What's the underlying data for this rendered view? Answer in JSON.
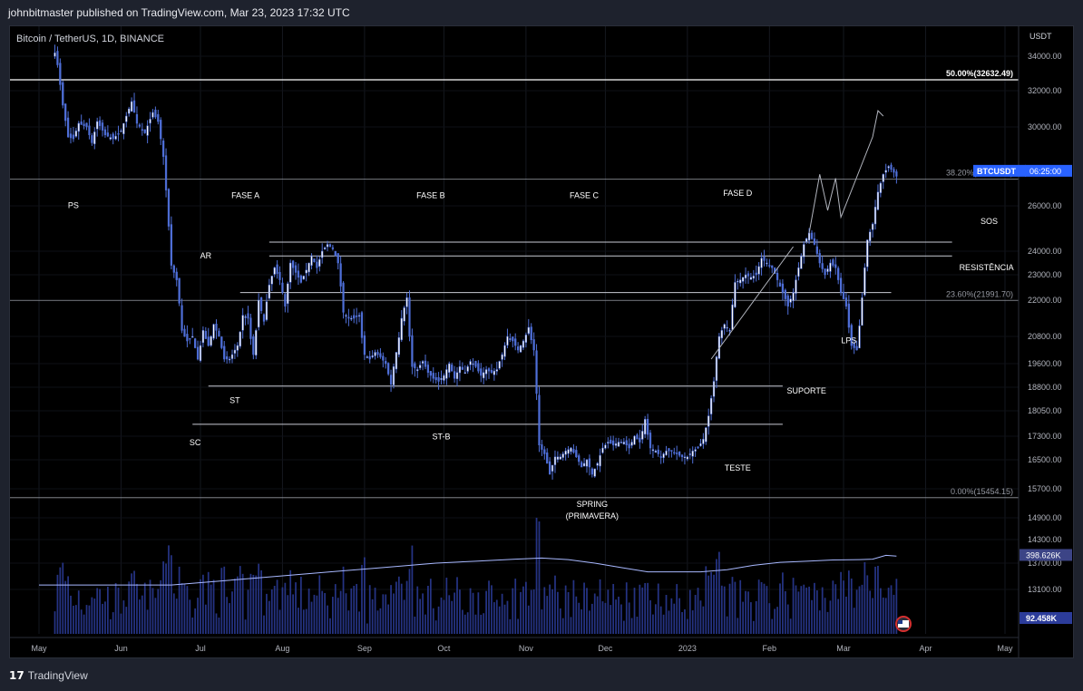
{
  "header": {
    "title": "johnbitmaster published on TradingView.com, Mar 23, 2023 17:32 UTC"
  },
  "footer": {
    "brand": "TradingView",
    "brand_icon": "tradingview-logo-icon"
  },
  "colors": {
    "background": "#000000",
    "candle": "#4f6fd8",
    "candle_highlight": "#ffffff",
    "volume": "#2c3c9a",
    "volume_ma": "#a8b8ff",
    "price_badge": "#2962ff"
  },
  "chart_data": {
    "type": "candlestick",
    "symbol_label": "Bitcoin / TetherUS, 1D, BINANCE",
    "currency": "USDT",
    "y_ticks": [
      "34000.00",
      "32000.00",
      "30000.00",
      "26000.00",
      "24000.00",
      "23000.00",
      "22000.00",
      "20800.00",
      "19600.00",
      "18800.00",
      "18050.00",
      "17300.00",
      "16500.00",
      "15700.00",
      "14900.00",
      "14300.00",
      "13700.00",
      "13100.00"
    ],
    "y_tick_values": [
      34000,
      32000,
      30000,
      26000,
      24000,
      23000,
      22000,
      20800,
      19600,
      18800,
      18050,
      17300,
      16500,
      15700,
      14900,
      14300,
      13700,
      13100
    ],
    "x_ticks": [
      "May",
      "Jun",
      "Jul",
      "Aug",
      "Sep",
      "Oct",
      "Nov",
      "Dec",
      "2023",
      "Feb",
      "Mar",
      "Apr",
      "May"
    ],
    "x_tick_days": [
      0,
      31,
      61,
      92,
      123,
      153,
      184,
      214,
      245,
      276,
      304,
      335,
      365
    ],
    "start_date": "2022-05-01",
    "fib_levels": [
      {
        "label": "50.00%(32632.49)",
        "price": 32632.49
      },
      {
        "label": "38.20%(27355.42)",
        "price": 27355.42
      },
      {
        "label": "23.60%(21991.70)",
        "price": 21991.7
      },
      {
        "label": "0.00%(15454.15)",
        "price": 15454.15
      }
    ],
    "last_price_badge": {
      "symbol": "BTCUSDT",
      "countdown": "06:25:00"
    },
    "volume_badges": {
      "ma": "398.626K",
      "current": "92.458K"
    },
    "annotations": [
      {
        "text": "PS",
        "day": 13,
        "price": 25900
      },
      {
        "text": "FASE A",
        "day": 78,
        "price": 26400
      },
      {
        "text": "FASE B",
        "day": 148,
        "price": 26400
      },
      {
        "text": "FASE C",
        "day": 206,
        "price": 26400
      },
      {
        "text": "FASE D",
        "day": 264,
        "price": 26500
      },
      {
        "text": "SOS",
        "day": 359,
        "price": 25200
      },
      {
        "text": "AR",
        "day": 63,
        "price": 23700
      },
      {
        "text": "RESISTÊNCIA",
        "day": 358,
        "price": 23200
      },
      {
        "text": "LPS",
        "day": 306,
        "price": 20500
      },
      {
        "text": "SUPORTE",
        "day": 290,
        "price": 18600
      },
      {
        "text": "ST",
        "day": 74,
        "price": 18300
      },
      {
        "text": "ST-B",
        "day": 152,
        "price": 17200
      },
      {
        "text": "SC",
        "day": 59,
        "price": 17000
      },
      {
        "text": "TESTE",
        "day": 264,
        "price": 16200
      },
      {
        "text": "SPRING",
        "day": 209,
        "price": 15200
      },
      {
        "text": "(PRIMAVERA)",
        "day": 209,
        "price": 14880
      }
    ],
    "levels": [
      {
        "name": "resistance-top",
        "price": 24400,
        "from_day": 87,
        "to_day": 345
      },
      {
        "name": "resistance-bottom",
        "price": 23800,
        "from_day": 87,
        "to_day": 345
      },
      {
        "name": "ar-line",
        "price": 22300,
        "from_day": 76,
        "to_day": 322
      },
      {
        "name": "support-line",
        "price": 18840,
        "from_day": 64,
        "to_day": 281
      },
      {
        "name": "sc-line",
        "price": 17650,
        "from_day": 58,
        "to_day": 281
      }
    ],
    "price_path": [
      [
        6,
        34200
      ],
      [
        7,
        33500
      ],
      [
        9,
        31200
      ],
      [
        11,
        29500
      ],
      [
        13,
        29400
      ],
      [
        15,
        30200
      ],
      [
        18,
        30000
      ],
      [
        20,
        29200
      ],
      [
        22,
        30300
      ],
      [
        25,
        29600
      ],
      [
        28,
        29400
      ],
      [
        31,
        29800
      ],
      [
        33,
        30600
      ],
      [
        35,
        31400
      ],
      [
        37,
        30200
      ],
      [
        40,
        29700
      ],
      [
        43,
        30800
      ],
      [
        45,
        30300
      ],
      [
        47,
        28500
      ],
      [
        50,
        23400
      ],
      [
        52,
        22800
      ],
      [
        54,
        21000
      ],
      [
        56,
        20600
      ],
      [
        58,
        20800
      ],
      [
        60,
        19800
      ],
      [
        62,
        21000
      ],
      [
        64,
        20400
      ],
      [
        66,
        21200
      ],
      [
        68,
        20800
      ],
      [
        70,
        19800
      ],
      [
        72,
        19800
      ],
      [
        75,
        20400
      ],
      [
        77,
        21500
      ],
      [
        79,
        21400
      ],
      [
        81,
        20000
      ],
      [
        83,
        22000
      ],
      [
        85,
        21300
      ],
      [
        87,
        22600
      ],
      [
        89,
        23300
      ],
      [
        91,
        22800
      ],
      [
        93,
        21800
      ],
      [
        95,
        23500
      ],
      [
        97,
        23100
      ],
      [
        99,
        22700
      ],
      [
        101,
        23200
      ],
      [
        103,
        23800
      ],
      [
        105,
        23300
      ],
      [
        107,
        24000
      ],
      [
        109,
        24300
      ],
      [
        111,
        24100
      ],
      [
        113,
        23500
      ],
      [
        115,
        21600
      ],
      [
        117,
        21400
      ],
      [
        119,
        21400
      ],
      [
        121,
        21500
      ],
      [
        123,
        20000
      ],
      [
        125,
        19800
      ],
      [
        127,
        20100
      ],
      [
        129,
        19900
      ],
      [
        131,
        19600
      ],
      [
        133,
        18900
      ],
      [
        135,
        20100
      ],
      [
        137,
        21400
      ],
      [
        139,
        22100
      ],
      [
        141,
        19500
      ],
      [
        143,
        19400
      ],
      [
        145,
        19700
      ],
      [
        147,
        19300
      ],
      [
        149,
        19100
      ],
      [
        151,
        19000
      ],
      [
        153,
        19200
      ],
      [
        155,
        19600
      ],
      [
        157,
        19100
      ],
      [
        159,
        19500
      ],
      [
        161,
        19300
      ],
      [
        163,
        19700
      ],
      [
        165,
        19500
      ],
      [
        167,
        19200
      ],
      [
        169,
        19400
      ],
      [
        171,
        19300
      ],
      [
        173,
        19400
      ],
      [
        175,
        20000
      ],
      [
        177,
        20800
      ],
      [
        179,
        20600
      ],
      [
        181,
        20200
      ],
      [
        183,
        20600
      ],
      [
        185,
        21100
      ],
      [
        187,
        20200
      ],
      [
        189,
        17000
      ],
      [
        191,
        16700
      ],
      [
        193,
        16100
      ],
      [
        195,
        16600
      ],
      [
        197,
        16600
      ],
      [
        199,
        16800
      ],
      [
        201,
        16900
      ],
      [
        203,
        16600
      ],
      [
        205,
        16300
      ],
      [
        207,
        16500
      ],
      [
        209,
        16100
      ],
      [
        211,
        16400
      ],
      [
        213,
        16900
      ],
      [
        215,
        17100
      ],
      [
        217,
        17000
      ],
      [
        219,
        17100
      ],
      [
        221,
        17100
      ],
      [
        223,
        16900
      ],
      [
        225,
        17300
      ],
      [
        227,
        17100
      ],
      [
        229,
        17800
      ],
      [
        231,
        16900
      ],
      [
        233,
        16800
      ],
      [
        235,
        16600
      ],
      [
        237,
        16800
      ],
      [
        239,
        16800
      ],
      [
        241,
        16700
      ],
      [
        243,
        16600
      ],
      [
        245,
        16600
      ],
      [
        247,
        16800
      ],
      [
        249,
        16900
      ],
      [
        251,
        17200
      ],
      [
        253,
        17900
      ],
      [
        255,
        19000
      ],
      [
        257,
        20800
      ],
      [
        259,
        21200
      ],
      [
        261,
        21000
      ],
      [
        263,
        22700
      ],
      [
        265,
        22800
      ],
      [
        267,
        23000
      ],
      [
        269,
        22900
      ],
      [
        271,
        23000
      ],
      [
        273,
        23700
      ],
      [
        275,
        23500
      ],
      [
        277,
        23300
      ],
      [
        279,
        22800
      ],
      [
        281,
        22300
      ],
      [
        283,
        21800
      ],
      [
        285,
        22300
      ],
      [
        287,
        23300
      ],
      [
        289,
        24300
      ],
      [
        291,
        24800
      ],
      [
        293,
        24300
      ],
      [
        295,
        23500
      ],
      [
        297,
        23000
      ],
      [
        299,
        23500
      ],
      [
        301,
        23300
      ],
      [
        303,
        22300
      ],
      [
        305,
        21800
      ],
      [
        307,
        20400
      ],
      [
        309,
        20200
      ],
      [
        311,
        22100
      ],
      [
        313,
        24500
      ],
      [
        315,
        25200
      ],
      [
        317,
        26700
      ],
      [
        319,
        27600
      ],
      [
        321,
        28000
      ],
      [
        323,
        27700
      ],
      [
        324,
        27500
      ]
    ],
    "projection": [
      [
        291,
        24800
      ],
      [
        295,
        27600
      ],
      [
        298,
        25800
      ],
      [
        301,
        27400
      ],
      [
        303,
        25500
      ],
      [
        315,
        29500
      ],
      [
        317,
        30900
      ],
      [
        319,
        30600
      ]
    ],
    "volume_ma_path": [
      [
        0,
        13200
      ],
      [
        30,
        13200
      ],
      [
        50,
        13200
      ],
      [
        70,
        13300
      ],
      [
        90,
        13400
      ],
      [
        110,
        13500
      ],
      [
        130,
        13600
      ],
      [
        150,
        13700
      ],
      [
        165,
        13750
      ],
      [
        180,
        13800
      ],
      [
        190,
        13830
      ],
      [
        200,
        13790
      ],
      [
        210,
        13700
      ],
      [
        220,
        13600
      ],
      [
        230,
        13500
      ],
      [
        240,
        13500
      ],
      [
        250,
        13500
      ],
      [
        260,
        13550
      ],
      [
        270,
        13650
      ],
      [
        280,
        13720
      ],
      [
        290,
        13750
      ],
      [
        300,
        13780
      ],
      [
        310,
        13790
      ],
      [
        315,
        13800
      ],
      [
        320,
        13900
      ],
      [
        324,
        13880
      ]
    ]
  }
}
